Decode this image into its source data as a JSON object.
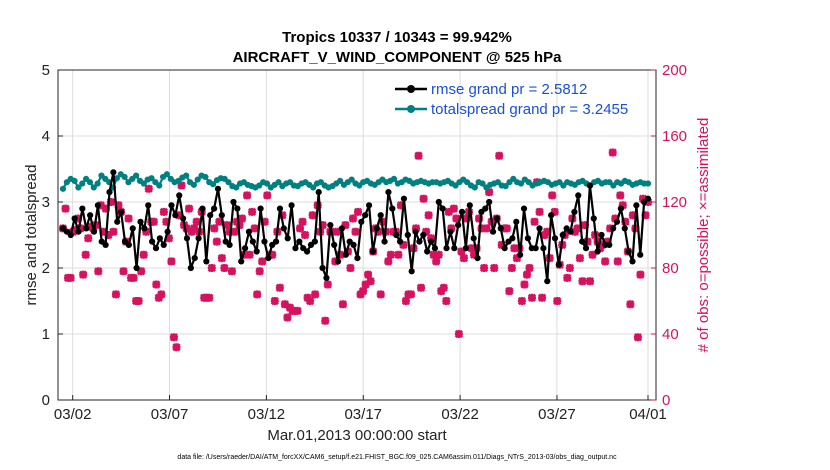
{
  "chart_data": {
    "type": "line",
    "title": "Tropics 10337 / 10343 = 99.942%",
    "subtitle": "AIRCRAFT_V_WIND_COMPONENT @ 525 hPa",
    "xlabel": "Mar.01,2013 00:00:00 start",
    "ylabel": "rmse and totalspread",
    "y2label": "# of obs: o=possible; ×=assimilated",
    "footer": "data file: /Users/raeder/DAI/ATM_forcXX/CAM6_setup/f.e21.FHIST_BGC.f09_025.CAM6assim.011/Diags_NTrS_2013-03/obs_diag_output.nc",
    "xlim": [
      0.5,
      31.2
    ],
    "ylim": [
      0,
      5
    ],
    "y2lim": [
      0,
      200
    ],
    "xticks": [
      1.5,
      6.5,
      11.5,
      16.5,
      21.5,
      26.5,
      31.2
    ],
    "xticklabels": [
      "03/02",
      "03/07",
      "03/12",
      "03/17",
      "03/22",
      "03/27",
      "04/01"
    ],
    "yticks": [
      0,
      1,
      2,
      3,
      4,
      5
    ],
    "y2ticks": [
      0,
      40,
      80,
      120,
      160,
      200
    ],
    "legend_position": "top-right",
    "colors": {
      "rmse": "#000000",
      "totalspread": "#008080",
      "obs": "#d6125f"
    },
    "series": [
      {
        "name": "rmse grand pr = 2.5812",
        "marker": "filled-circle",
        "values": [
          2.6,
          2.55,
          2.5,
          2.75,
          2.55,
          2.9,
          2.6,
          2.8,
          2.55,
          2.95,
          2.4,
          2.35,
          3.15,
          3.45,
          2.7,
          2.85,
          2.4,
          2.35,
          2.6,
          2.0,
          2.7,
          2.6,
          2.95,
          2.4,
          2.3,
          2.45,
          2.35,
          2.55,
          2.95,
          2.8,
          3.1,
          2.75,
          2.45,
          2.0,
          2.15,
          2.45,
          2.9,
          2.1,
          2.8,
          2.9,
          3.2,
          2.8,
          2.4,
          2.35,
          3.0,
          2.9,
          2.1,
          2.3,
          2.55,
          2.4,
          2.25,
          2.9,
          2.4,
          2.15,
          2.35,
          2.4,
          2.9,
          2.6,
          2.45,
          2.95,
          2.3,
          2.4,
          2.3,
          2.25,
          2.35,
          2.4,
          3.15,
          2.0,
          1.85,
          2.65,
          2.35,
          2.1,
          2.6,
          2.2,
          2.4,
          2.35,
          2.15,
          2.7,
          2.8,
          2.95,
          2.25,
          2.6,
          2.8,
          2.4,
          3.15,
          2.9,
          2.5,
          2.4,
          3.05,
          2.5,
          1.95,
          2.55,
          2.4,
          2.5,
          2.25,
          2.4,
          2.3,
          3.0,
          2.9,
          2.3,
          2.55,
          2.3,
          2.65,
          2.85,
          2.3,
          2.95,
          2.45,
          2.15,
          2.85,
          2.9,
          3.0,
          2.55,
          2.75,
          2.6,
          2.3,
          2.4,
          2.45,
          2.7,
          2.2,
          2.9,
          2.45,
          2.3,
          2.3,
          2.6,
          2.3,
          1.8,
          2.8,
          2.45,
          2.05,
          2.5,
          2.6,
          2.55,
          2.85,
          3.1,
          2.4,
          2.3,
          3.25,
          2.75,
          2.25,
          2.5,
          2.35,
          2.35,
          2.6,
          2.7,
          2.9,
          2.6,
          2.25,
          2.1,
          2.95,
          2.2,
          3.0,
          3.05
        ]
      },
      {
        "name": "totalspread grand pr = 3.2455",
        "marker": "filled-circle",
        "values": [
          3.2,
          3.3,
          3.35,
          3.32,
          3.22,
          3.28,
          3.35,
          3.3,
          3.22,
          3.28,
          3.4,
          3.35,
          3.3,
          3.22,
          3.36,
          3.42,
          3.38,
          3.3,
          3.35,
          3.4,
          3.32,
          3.28,
          3.34,
          3.36,
          3.3,
          3.25,
          3.38,
          3.42,
          3.35,
          3.3,
          3.32,
          3.37,
          3.4,
          3.3,
          3.26,
          3.34,
          3.4,
          3.38,
          3.3,
          3.27,
          3.33,
          3.36,
          3.35,
          3.3,
          3.24,
          3.22,
          3.28,
          3.3,
          3.26,
          3.24,
          3.22,
          3.25,
          3.3,
          3.28,
          3.22,
          3.26,
          3.3,
          3.24,
          3.28,
          3.3,
          3.25,
          3.24,
          3.28,
          3.3,
          3.26,
          3.22,
          3.28,
          3.3,
          3.25,
          3.22,
          3.24,
          3.28,
          3.32,
          3.26,
          3.3,
          3.34,
          3.28,
          3.25,
          3.3,
          3.32,
          3.28,
          3.26,
          3.3,
          3.34,
          3.3,
          3.32,
          3.35,
          3.28,
          3.3,
          3.34,
          3.32,
          3.28,
          3.3,
          3.32,
          3.3,
          3.28,
          3.3,
          3.3,
          3.28,
          3.3,
          3.32,
          3.28,
          3.25,
          3.3,
          3.34,
          3.3,
          3.25,
          3.22,
          3.3,
          3.28,
          3.22,
          3.26,
          3.28,
          3.3,
          3.25,
          3.24,
          3.3,
          3.35,
          3.3,
          3.28,
          3.34,
          3.3,
          3.25,
          3.28,
          3.3,
          3.32,
          3.3,
          3.26,
          3.28,
          3.3,
          3.25,
          3.3,
          3.28,
          3.26,
          3.3,
          3.32,
          3.28,
          3.25,
          3.3,
          3.32,
          3.28,
          3.3,
          3.3,
          3.25,
          3.3,
          3.28,
          3.32,
          3.3,
          3.26,
          3.28,
          3.3,
          3.28,
          3.28
        ]
      },
      {
        "name": "# of obs assimilated",
        "marker": "x",
        "axis": "right",
        "values": [
          104,
          116,
          74,
          74,
          102,
          103,
          110,
          104,
          76,
          88,
          98,
          105,
          104,
          106,
          78,
          118,
          102,
          116,
          100,
          120,
          102,
          64,
          118,
          114,
          78,
          96,
          110,
          74,
          74,
          60,
          60,
          78,
          88,
          102,
          128,
          108,
          108,
          70,
          62,
          64,
          114,
          108,
          98,
          84,
          38,
          32,
          112,
          130,
          106,
          104,
          116,
          102,
          104,
          108,
          102,
          114,
          62,
          62,
          62,
          80,
          104,
          96,
          108,
          86,
          80,
          106,
          102,
          78,
          102,
          108,
          106,
          110,
          88,
          124,
          88,
          114,
          104,
          64,
          78,
          84,
          108,
          124,
          88,
          88,
          60,
          102,
          68,
          112,
          58,
          50,
          56,
          54,
          54,
          54,
          104,
          108,
          100,
          62,
          60,
          112,
          64,
          118,
          102,
          106,
          48,
          70,
          102,
          102,
          84,
          102,
          88,
          58,
          106,
          90,
          80,
          110,
          102,
          114,
          64,
          66,
          70,
          76,
          72,
          90,
          104,
          102,
          64,
          108,
          102,
          84,
          88,
          102,
          102,
          88,
          118,
          94,
          60,
          64,
          64,
          92,
          104,
          148,
          68,
          122,
          102,
          112,
          98,
          88,
          84,
          88,
          66,
          68,
          60,
          114,
          104,
          116,
          110,
          40,
          90,
          86,
          110,
          114,
          92,
          88,
          92,
          110,
          104,
          80,
          104,
          126,
          108,
          80,
          110,
          148,
          94,
          104,
          104,
          66,
          80,
          92,
          86,
          92,
          60,
          70,
          76,
          80,
          62,
          108,
          132,
          114,
          62,
          100,
          102,
          86,
          124,
          114,
          60,
          82,
          94,
          100,
          74,
          80,
          110,
          102,
          104,
          86,
          72,
          106,
          96,
          72,
          88,
          100,
          96,
          92,
          94,
          84,
          96,
          104,
          150,
          110,
          84,
          124,
          118,
          108,
          90,
          58,
          112,
          104,
          38,
          76,
          122,
          112,
          120
        ]
      },
      {
        "name": "# of obs possible",
        "marker": "o",
        "axis": "right",
        "values": [
          104,
          116,
          74,
          74,
          102,
          103,
          110,
          104,
          76,
          88,
          98,
          105,
          104,
          106,
          78,
          118,
          102,
          116,
          100,
          120,
          102,
          64,
          118,
          114,
          78,
          96,
          110,
          74,
          74,
          60,
          60,
          78,
          88,
          102,
          128,
          108,
          108,
          70,
          62,
          64,
          114,
          108,
          98,
          84,
          38,
          32,
          112,
          130,
          106,
          104,
          116,
          102,
          104,
          108,
          102,
          114,
          62,
          62,
          62,
          80,
          104,
          96,
          108,
          86,
          80,
          106,
          102,
          78,
          102,
          108,
          106,
          110,
          88,
          124,
          88,
          114,
          104,
          64,
          78,
          84,
          108,
          124,
          88,
          88,
          60,
          102,
          68,
          112,
          58,
          50,
          56,
          54,
          54,
          54,
          104,
          108,
          100,
          62,
          60,
          112,
          64,
          118,
          102,
          106,
          48,
          70,
          102,
          102,
          84,
          102,
          88,
          58,
          106,
          90,
          80,
          110,
          102,
          114,
          64,
          66,
          70,
          76,
          72,
          90,
          104,
          102,
          64,
          108,
          102,
          84,
          88,
          102,
          102,
          88,
          118,
          94,
          60,
          64,
          64,
          92,
          104,
          148,
          68,
          122,
          102,
          112,
          98,
          88,
          84,
          88,
          66,
          68,
          60,
          114,
          104,
          116,
          110,
          40,
          90,
          86,
          110,
          114,
          92,
          88,
          92,
          110,
          104,
          80,
          104,
          126,
          108,
          80,
          110,
          148,
          94,
          104,
          104,
          66,
          80,
          92,
          86,
          92,
          60,
          70,
          76,
          80,
          62,
          108,
          132,
          114,
          62,
          100,
          102,
          86,
          124,
          114,
          60,
          82,
          94,
          100,
          74,
          80,
          110,
          102,
          104,
          86,
          72,
          106,
          96,
          72,
          88,
          100,
          96,
          92,
          94,
          84,
          96,
          104,
          150,
          110,
          84,
          124,
          118,
          108,
          90,
          58,
          112,
          104,
          38,
          76,
          122,
          112,
          120
        ]
      }
    ]
  }
}
